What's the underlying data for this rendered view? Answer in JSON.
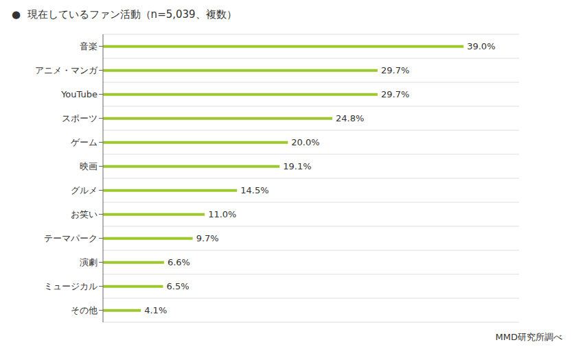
{
  "chart_data": {
    "type": "bar",
    "orientation": "horizontal",
    "title": "●  現在しているファン活動（n=5,039、複数）",
    "categories": [
      "音楽",
      "アニメ・マンガ",
      "YouTube",
      "スポーツ",
      "ゲーム",
      "映画",
      "グルメ",
      "お笑い",
      "テーマパーク",
      "演劇",
      "ミュージカル",
      "その他"
    ],
    "values": [
      39.0,
      29.7,
      29.7,
      24.8,
      20.0,
      19.1,
      14.5,
      11.0,
      9.7,
      6.6,
      6.5,
      4.1
    ],
    "value_labels": [
      "39.0%",
      "29.7%",
      "29.7%",
      "24.8%",
      "20.0%",
      "19.1%",
      "14.5%",
      "11.0%",
      "9.7%",
      "6.6%",
      "6.5%",
      "4.1%"
    ],
    "data_labels": true,
    "color": "#9dc82e",
    "xlim": [
      0,
      45
    ],
    "grid": true,
    "tick_labels": "y",
    "annotations": [
      "MMD研究所調べ"
    ]
  }
}
